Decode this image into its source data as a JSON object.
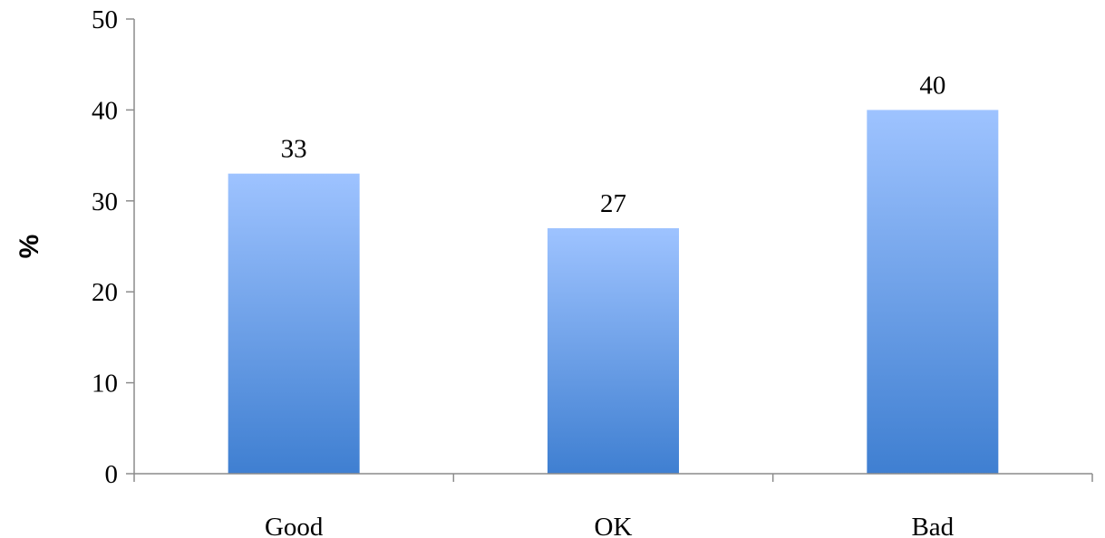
{
  "chart_data": {
    "type": "bar",
    "title": "",
    "xlabel": "",
    "ylabel": "%",
    "categories": [
      "Good",
      "OK",
      "Bad"
    ],
    "values": [
      33,
      27,
      40
    ],
    "data_labels": [
      "33",
      "27",
      "40"
    ],
    "ylim": [
      0,
      50
    ],
    "yticks": [
      0,
      10,
      20,
      30,
      40,
      50
    ],
    "grid": false,
    "legend": "none",
    "colors": {
      "bar_top": "#9ec3ff",
      "bar_bottom": "#3f7fd1",
      "axis": "#8c8c8c",
      "text": "#000000"
    }
  }
}
